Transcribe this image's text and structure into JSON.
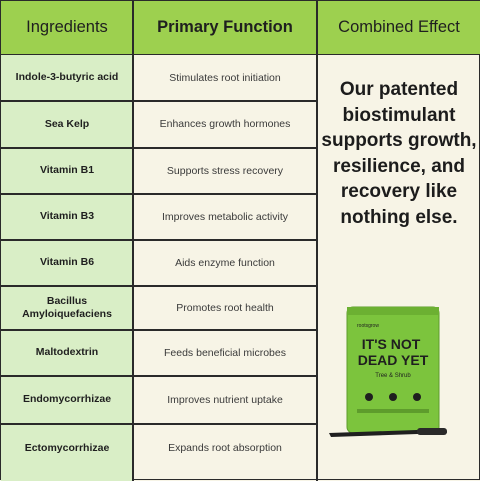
{
  "headers": {
    "ingredients": "Ingredients",
    "primary_function": "Primary Function",
    "combined_effect": "Combined Effect"
  },
  "rows": [
    {
      "ingredient": "Indole-3-butyric acid",
      "function": "Stimulates root initiation"
    },
    {
      "ingredient": "Sea Kelp",
      "function": "Enhances growth hormones"
    },
    {
      "ingredient": "Vitamin B1",
      "function": "Supports stress recovery"
    },
    {
      "ingredient": "Vitamin B3",
      "function": "Improves metabolic activity"
    },
    {
      "ingredient": "Vitamin B6",
      "function": "Aids enzyme function"
    },
    {
      "ingredient": "Bacillus Amyloiquefaciens",
      "function": "Promotes root health"
    },
    {
      "ingredient": "Maltodextrin",
      "function": "Feeds beneficial microbes"
    },
    {
      "ingredient": "Endomycorrhizae",
      "function": "Improves nutrient uptake"
    },
    {
      "ingredient": "Ectomycorrhizae",
      "function": "Expands root absorption"
    }
  ],
  "combined_text": "Our patented biostimulant supports growth, resilience, and recovery like nothing else.",
  "product": {
    "brand": "rootsgrow",
    "title": "IT'S NOT DEAD YET",
    "subtitle": "Tree & Shrub",
    "colors": {
      "bag": "#7cc43d",
      "text": "#1f1f1f"
    }
  }
}
